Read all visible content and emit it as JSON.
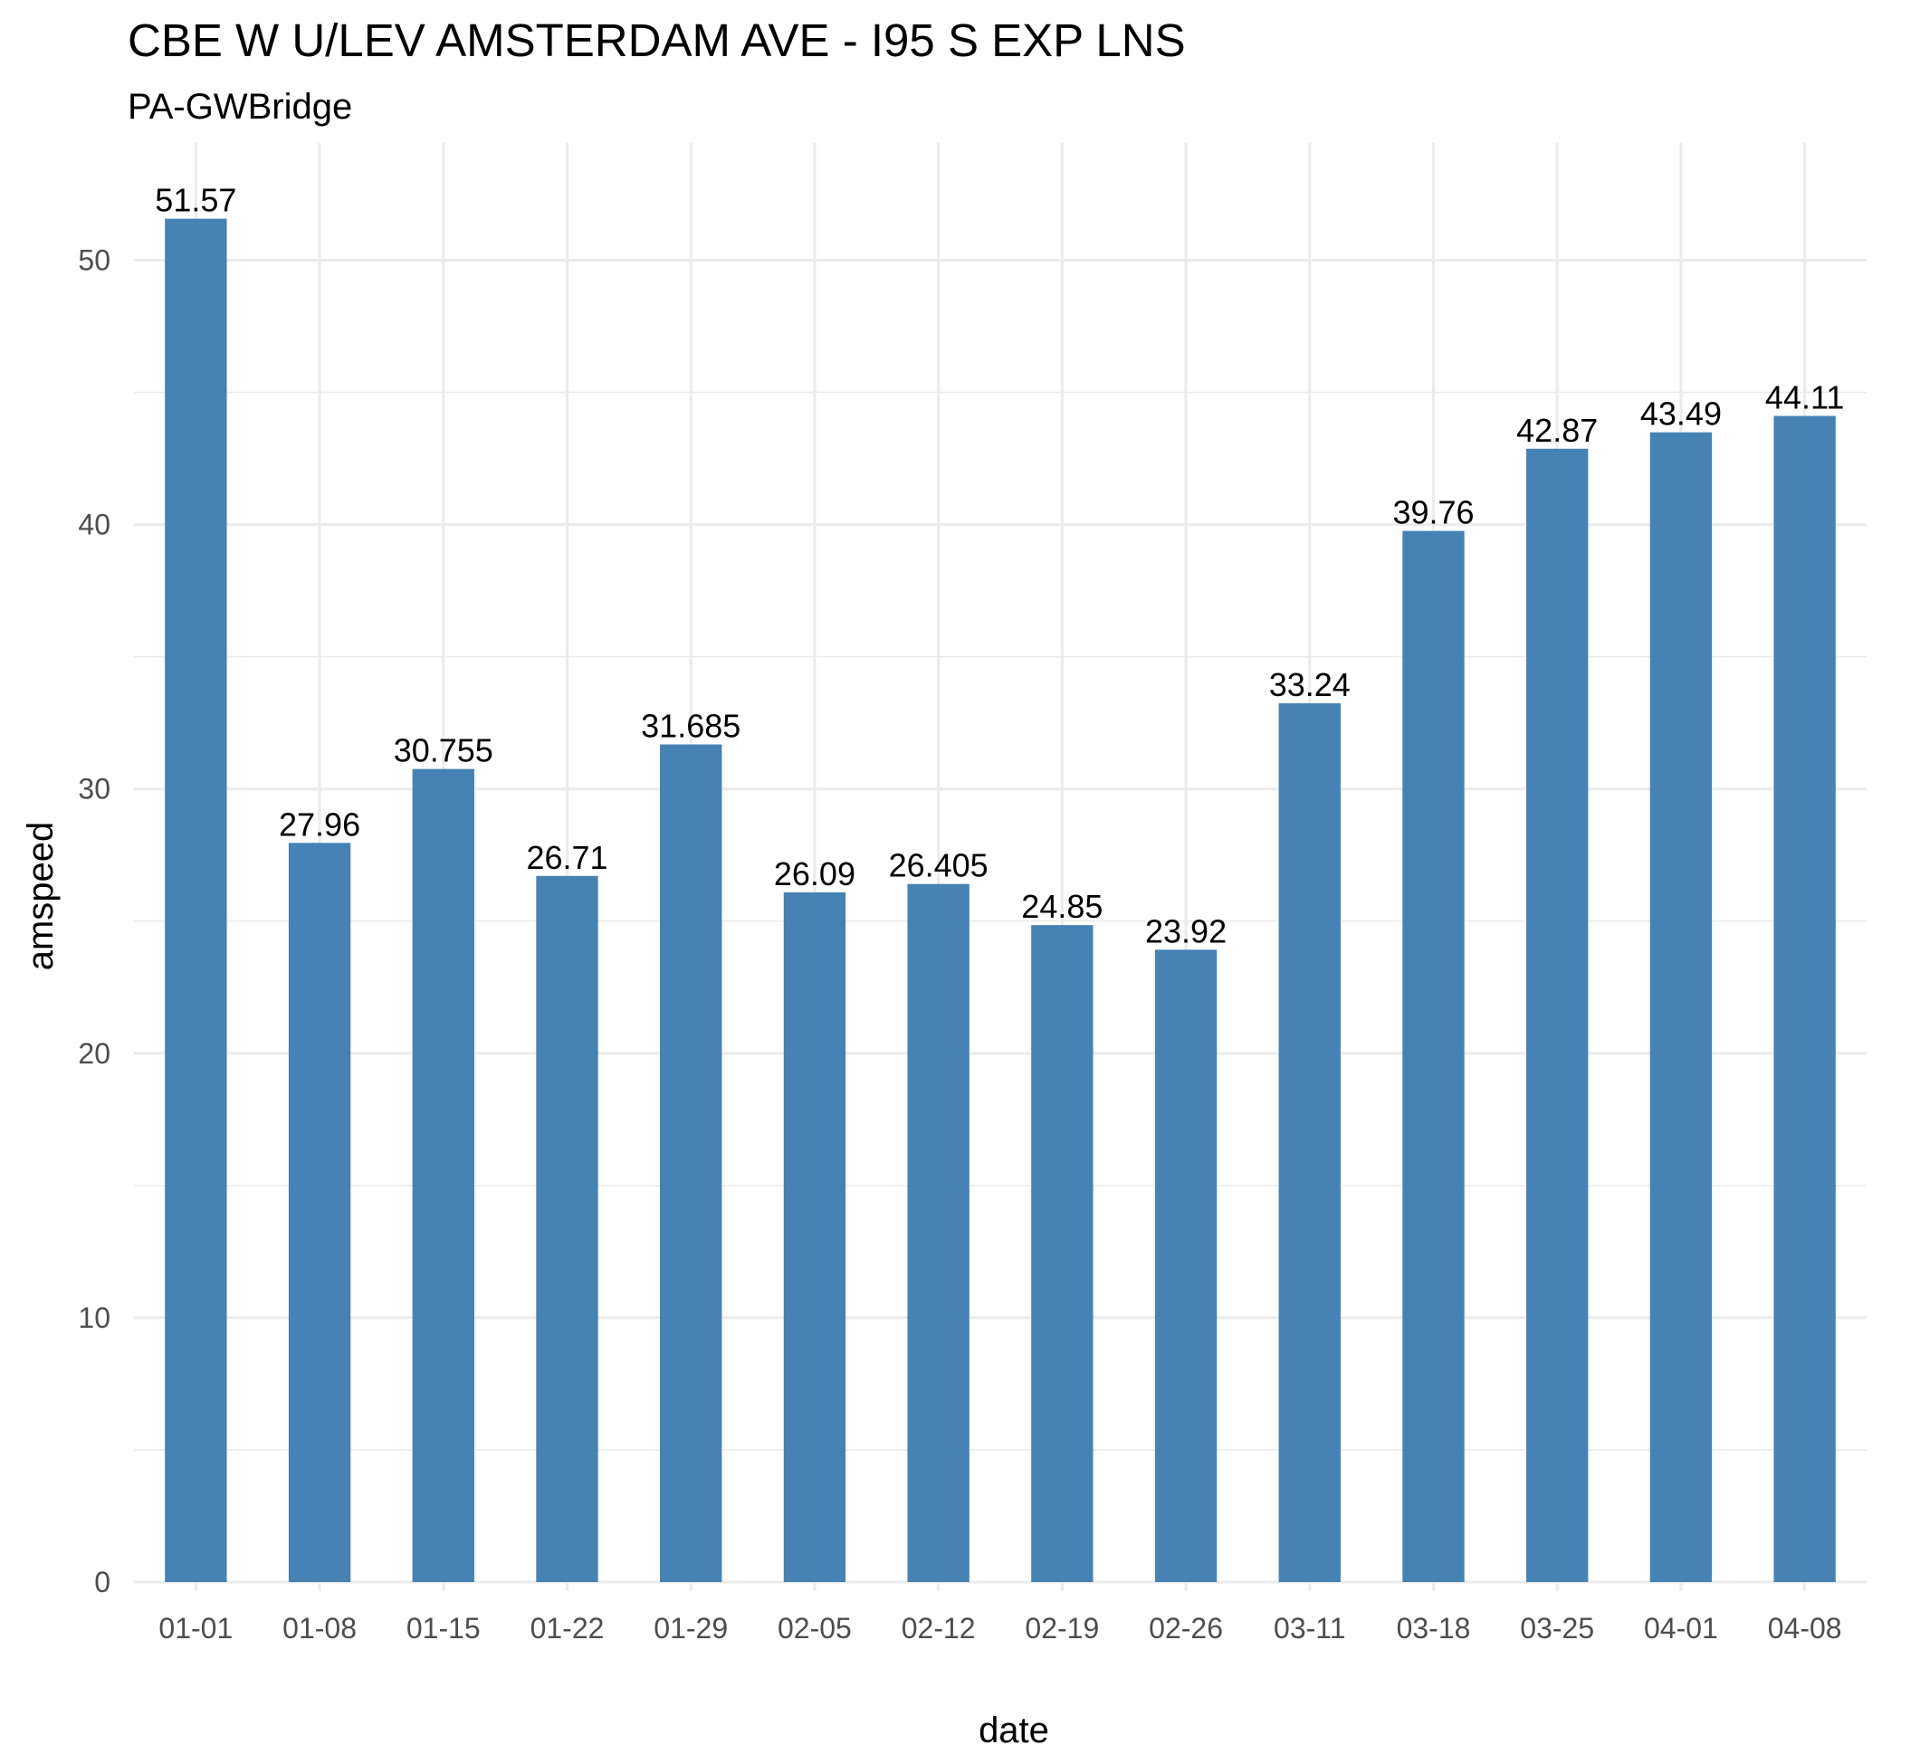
{
  "chart_data": {
    "type": "bar",
    "title": "CBE W U/LEV AMSTERDAM AVE - I95 S EXP LNS",
    "subtitle": "PA-GWBridge",
    "xlabel": "date",
    "ylabel": "amspeed",
    "categories": [
      "01-01",
      "01-08",
      "01-15",
      "01-22",
      "01-29",
      "02-05",
      "02-12",
      "02-19",
      "02-26",
      "03-11",
      "03-18",
      "03-25",
      "04-01",
      "04-08"
    ],
    "values": [
      51.57,
      27.96,
      30.755,
      26.71,
      31.685,
      26.09,
      26.405,
      24.85,
      23.92,
      33.24,
      39.76,
      42.87,
      43.49,
      44.11
    ],
    "labels": [
      "51.57",
      "27.96",
      "30.755",
      "26.71",
      "31.685",
      "26.09",
      "26.405",
      "24.85",
      "23.92",
      "33.24",
      "39.76",
      "42.87",
      "43.49",
      "44.11"
    ],
    "yticks": [
      0,
      10,
      20,
      30,
      40,
      50
    ],
    "ylim": [
      0,
      53
    ],
    "grid": true,
    "bar_color": "#4682B4",
    "grid_color": "#EBEBEB"
  }
}
